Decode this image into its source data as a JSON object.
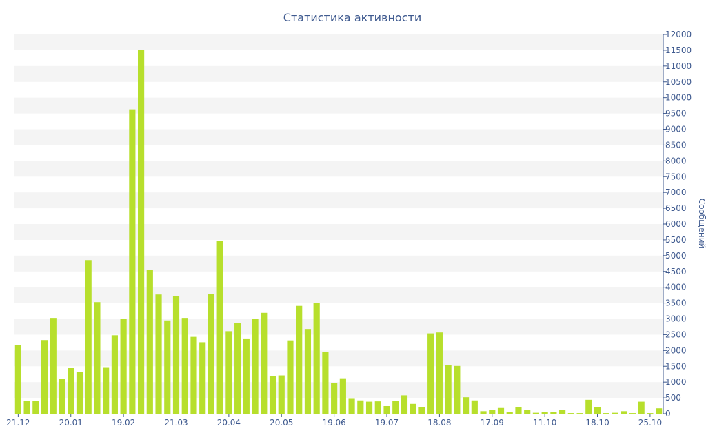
{
  "colors": {
    "bar": "#b7df2c",
    "text": "#3f5a8f",
    "band": "#f4f4f4",
    "axis": "#3f5a8f"
  },
  "chart_data": {
    "type": "bar",
    "title": "Статистика активности",
    "ylabel": "Сообщений",
    "xlabel": "",
    "ylim": [
      0,
      12000
    ],
    "ytick_step": 500,
    "y_axis_side": "right",
    "grid": "alternating horizontal bands",
    "x_tick_labels": [
      {
        "index": 0,
        "label": "21.12"
      },
      {
        "index": 6,
        "label": "20.01"
      },
      {
        "index": 12,
        "label": "19.02"
      },
      {
        "index": 18,
        "label": "21.03"
      },
      {
        "index": 24,
        "label": "20.04"
      },
      {
        "index": 30,
        "label": "20.05"
      },
      {
        "index": 36,
        "label": "19.06"
      },
      {
        "index": 42,
        "label": "19.07"
      },
      {
        "index": 48,
        "label": "18.08"
      },
      {
        "index": 54,
        "label": "17.09"
      },
      {
        "index": 60,
        "label": "11.10"
      },
      {
        "index": 66,
        "label": "18.10"
      },
      {
        "index": 72,
        "label": "25.10"
      }
    ],
    "values": [
      2180,
      400,
      410,
      2330,
      3030,
      1100,
      1440,
      1320,
      4860,
      3530,
      1450,
      2480,
      3010,
      9630,
      11510,
      4550,
      3770,
      2950,
      3720,
      3030,
      2430,
      2260,
      3780,
      5460,
      2610,
      2860,
      2380,
      3000,
      3190,
      1190,
      1210,
      2320,
      3410,
      2680,
      3510,
      1960,
      980,
      1120,
      470,
      420,
      380,
      390,
      240,
      410,
      580,
      310,
      210,
      2540,
      2570,
      1540,
      1510,
      520,
      420,
      80,
      110,
      180,
      60,
      210,
      110,
      30,
      60,
      60,
      130,
      20,
      20,
      440,
      200,
      20,
      30,
      80,
      20,
      380,
      20,
      170
    ]
  }
}
